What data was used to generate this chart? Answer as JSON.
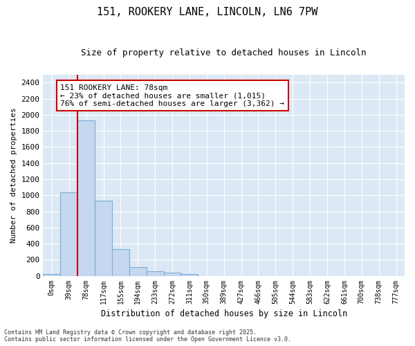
{
  "title": "151, ROOKERY LANE, LINCOLN, LN6 7PW",
  "subtitle": "Size of property relative to detached houses in Lincoln",
  "xlabel": "Distribution of detached houses by size in Lincoln",
  "ylabel": "Number of detached properties",
  "bar_color": "#c5d8f0",
  "bar_edge_color": "#7badd4",
  "plot_bg_color": "#dce8f5",
  "fig_bg_color": "#ffffff",
  "grid_color": "#ffffff",
  "annotation_line_color": "#cc0000",
  "annotation_box_color": "#cc0000",
  "annotation_text": "151 ROOKERY LANE: 78sqm\n← 23% of detached houses are smaller (1,015)\n76% of semi-detached houses are larger (3,362) →",
  "footer_line1": "Contains HM Land Registry data © Crown copyright and database right 2025.",
  "footer_line2": "Contains public sector information licensed under the Open Government Licence v3.0.",
  "categories": [
    "0sqm",
    "39sqm",
    "78sqm",
    "117sqm",
    "155sqm",
    "194sqm",
    "233sqm",
    "272sqm",
    "311sqm",
    "350sqm",
    "389sqm",
    "427sqm",
    "466sqm",
    "505sqm",
    "544sqm",
    "583sqm",
    "622sqm",
    "661sqm",
    "700sqm",
    "738sqm",
    "777sqm"
  ],
  "values": [
    20,
    1035,
    1930,
    930,
    330,
    110,
    55,
    35,
    25,
    0,
    0,
    0,
    0,
    0,
    0,
    0,
    0,
    0,
    0,
    0,
    0
  ],
  "ylim": [
    0,
    2500
  ],
  "yticks": [
    0,
    200,
    400,
    600,
    800,
    1000,
    1200,
    1400,
    1600,
    1800,
    2000,
    2200,
    2400
  ],
  "red_line_bin": 2,
  "figsize": [
    6.0,
    5.0
  ],
  "dpi": 100
}
